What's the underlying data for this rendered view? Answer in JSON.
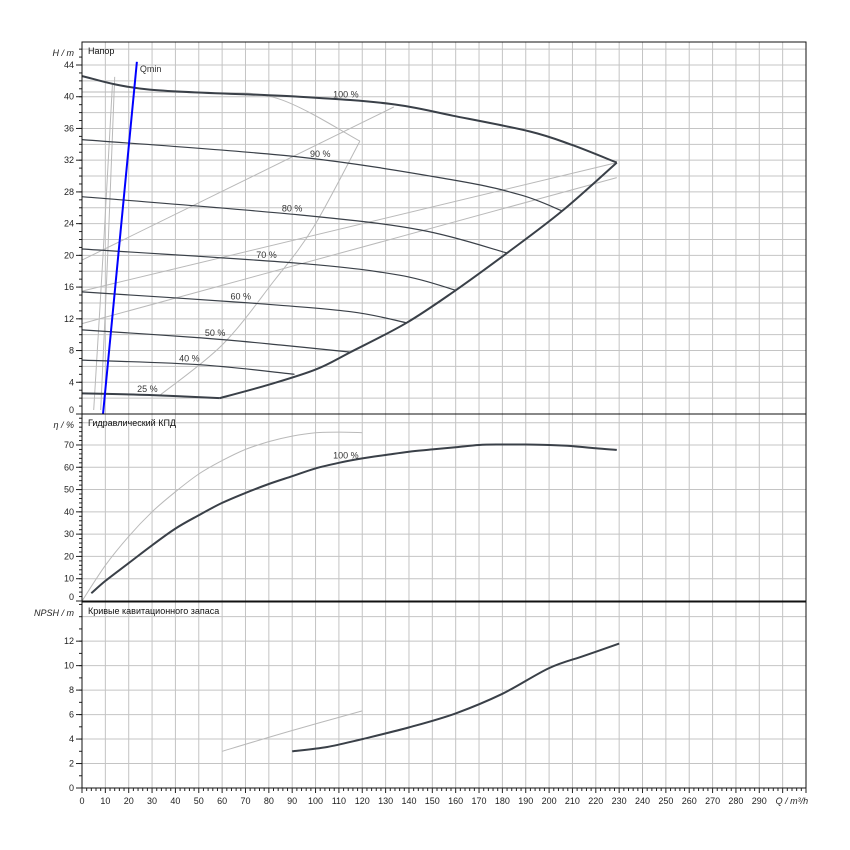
{
  "chart_data": [
    {
      "type": "line",
      "panel": "head",
      "title": "Напор",
      "ylabel": "H / m",
      "xlabel": "Q / m³/h",
      "xlim": [
        0,
        310
      ],
      "ylim": [
        0,
        46.9
      ],
      "yticks": [
        0,
        4,
        8,
        12,
        16,
        20,
        24,
        28,
        32,
        36,
        40,
        44
      ],
      "grid": true,
      "colors": {
        "main": "#3a4048",
        "secondary": "#b9b9b9",
        "qmin": "#0000ff",
        "grid": "#c4c4c4"
      },
      "series": [
        {
          "name": "100 %",
          "label": "100 %",
          "label_q": 113,
          "width": 2,
          "points": [
            [
              0,
              42.6
            ],
            [
              29,
              40.9
            ],
            [
              93,
              40.0
            ],
            [
              132,
              39.1
            ],
            [
              159,
              37.6
            ],
            [
              192,
              35.6
            ],
            [
              210,
              33.9
            ],
            [
              229,
              31.7
            ]
          ]
        },
        {
          "name": "90 %",
          "label": "90 %",
          "label_q": 102,
          "width": 1.2,
          "points": [
            [
              0,
              34.6
            ],
            [
              93,
              32.4
            ],
            [
              159,
              29.5
            ],
            [
              188,
              27.6
            ],
            [
              205.6,
              25.6
            ]
          ]
        },
        {
          "name": "80 %",
          "label": "80 %",
          "label_q": 90,
          "width": 1.2,
          "points": [
            [
              0,
              27.4
            ],
            [
              93,
              25.1
            ],
            [
              145,
              23.2
            ],
            [
              182,
              20.3
            ]
          ]
        },
        {
          "name": "70 %",
          "label": "70 %",
          "label_q": 79,
          "width": 1.2,
          "points": [
            [
              0,
              20.8
            ],
            [
              93,
              19.0
            ],
            [
              136,
              17.5
            ],
            [
              160,
              15.6
            ]
          ]
        },
        {
          "name": "60 %",
          "label": "60 %",
          "label_q": 68,
          "width": 1.2,
          "points": [
            [
              0,
              15.4
            ],
            [
              72,
              14.0
            ],
            [
              115,
              12.9
            ],
            [
              139,
              11.5
            ]
          ]
        },
        {
          "name": "50 %",
          "label": "50 %",
          "label_q": 57,
          "width": 1.2,
          "points": [
            [
              0,
              10.6
            ],
            [
              51,
              9.6
            ],
            [
              85,
              8.7
            ],
            [
              115,
              7.8
            ]
          ]
        },
        {
          "name": "40 %",
          "label": "40 %",
          "label_q": 46,
          "width": 1.2,
          "points": [
            [
              0,
              6.8
            ],
            [
              51,
              6.2
            ],
            [
              91,
              5.0
            ]
          ]
        },
        {
          "name": "25 %",
          "label": "25 %",
          "label_q": 28,
          "width": 2,
          "points": [
            [
              0,
              2.6
            ],
            [
              29,
              2.4
            ],
            [
              59,
              2.0
            ]
          ]
        },
        {
          "name": "max-limit",
          "label": "",
          "width": 2,
          "points": [
            [
              59,
              2.0
            ],
            [
              80,
              3.7
            ],
            [
              100,
              5.6
            ],
            [
              115,
              7.8
            ],
            [
              139,
              11.5
            ],
            [
              160,
              15.6
            ],
            [
              182,
              20.3
            ],
            [
              205.6,
              25.6
            ],
            [
              229,
              31.7
            ]
          ]
        }
      ],
      "secondary": [
        {
          "name": "alt-impeller-head",
          "points": [
            [
              0,
              40.6
            ],
            [
              50,
              40.5
            ],
            [
              83.5,
              39.8
            ],
            [
              119,
              34.4
            ]
          ]
        },
        {
          "name": "efficiency-iso",
          "points": [
            [
              33.5,
              2.4
            ],
            [
              60,
              8.7
            ],
            [
              82,
              16.7
            ],
            [
              99,
              23.5
            ],
            [
              119,
              34.4
            ]
          ]
        },
        {
          "name": "system-line-1",
          "points": [
            [
              0,
              19.4
            ],
            [
              133.5,
              38.7
            ]
          ]
        },
        {
          "name": "system-line-2",
          "points": [
            [
              0,
              15.5
            ],
            [
              229,
              31.7
            ]
          ]
        },
        {
          "name": "system-line-3",
          "points": [
            [
              0,
              11.4
            ],
            [
              229,
              29.8
            ]
          ]
        },
        {
          "name": "near-vertical-1",
          "points": [
            [
              5,
              0.5
            ],
            [
              9,
              20
            ],
            [
              13,
              41.5
            ]
          ]
        },
        {
          "name": "near-vertical-2",
          "points": [
            [
              8,
              0.5
            ],
            [
              11,
              20
            ],
            [
              14,
              42.5
            ]
          ]
        }
      ],
      "qmin": {
        "label": "Qmin",
        "points": [
          [
            9,
            0
          ],
          [
            23.5,
            44.4
          ]
        ]
      }
    },
    {
      "type": "line",
      "panel": "efficiency",
      "title": "Гидравлический КПД",
      "ylabel": "η / %",
      "ylim": [
        0,
        83.9
      ],
      "yticks": [
        0,
        10,
        20,
        30,
        40,
        50,
        60,
        70
      ],
      "series": [
        {
          "name": "100 %",
          "label": "100 %",
          "label_q": 113,
          "width": 2,
          "points": [
            [
              4,
              3.5
            ],
            [
              10,
              9
            ],
            [
              20,
              17
            ],
            [
              30,
              25
            ],
            [
              40,
              32.5
            ],
            [
              50,
              38.5
            ],
            [
              60,
              44
            ],
            [
              70,
              48.5
            ],
            [
              80,
              52.5
            ],
            [
              90,
              56
            ],
            [
              100,
              59.5
            ],
            [
              110,
              62
            ],
            [
              120,
              64
            ],
            [
              130,
              65.5
            ],
            [
              140,
              67
            ],
            [
              150,
              68
            ],
            [
              160,
              69
            ],
            [
              170,
              70
            ],
            [
              180,
              70.2
            ],
            [
              190,
              70.2
            ],
            [
              200,
              70
            ],
            [
              210,
              69.5
            ],
            [
              220,
              68.5
            ],
            [
              229,
              67.8
            ]
          ]
        }
      ],
      "secondary": [
        {
          "name": "alt-impeller-efficiency",
          "points": [
            [
              0,
              0
            ],
            [
              10,
              16
            ],
            [
              20,
              29
            ],
            [
              30,
              40
            ],
            [
              40,
              49
            ],
            [
              50,
              57
            ],
            [
              60,
              63
            ],
            [
              70,
              68
            ],
            [
              80,
              71.5
            ],
            [
              90,
              74
            ],
            [
              100,
              75.5
            ],
            [
              110,
              75.8
            ],
            [
              120,
              75.5
            ]
          ]
        }
      ]
    },
    {
      "type": "line",
      "panel": "npsh",
      "title": "Кривые кавитационного запаса",
      "ylabel": "NPSH / m",
      "ylim": [
        0,
        15.2
      ],
      "yticks": [
        0,
        2,
        4,
        6,
        8,
        10,
        12
      ],
      "xticks": [
        0,
        10,
        20,
        30,
        40,
        50,
        60,
        70,
        80,
        90,
        100,
        110,
        120,
        130,
        140,
        150,
        160,
        170,
        180,
        190,
        200,
        210,
        220,
        230,
        240,
        250,
        260,
        270,
        280,
        290
      ],
      "series": [
        {
          "name": "npsh-100",
          "label": "",
          "width": 2,
          "points": [
            [
              90,
              3.0
            ],
            [
              105,
              3.35
            ],
            [
              120,
              4.0
            ],
            [
              140,
              4.95
            ],
            [
              160,
              6.1
            ],
            [
              180,
              7.7
            ],
            [
              200,
              9.8
            ],
            [
              215,
              10.8
            ],
            [
              230,
              11.8
            ]
          ]
        }
      ],
      "secondary": [
        {
          "name": "alt-impeller-npsh",
          "points": [
            [
              60,
              3.0
            ],
            [
              90,
              4.7
            ],
            [
              120,
              6.3
            ]
          ]
        }
      ]
    }
  ]
}
